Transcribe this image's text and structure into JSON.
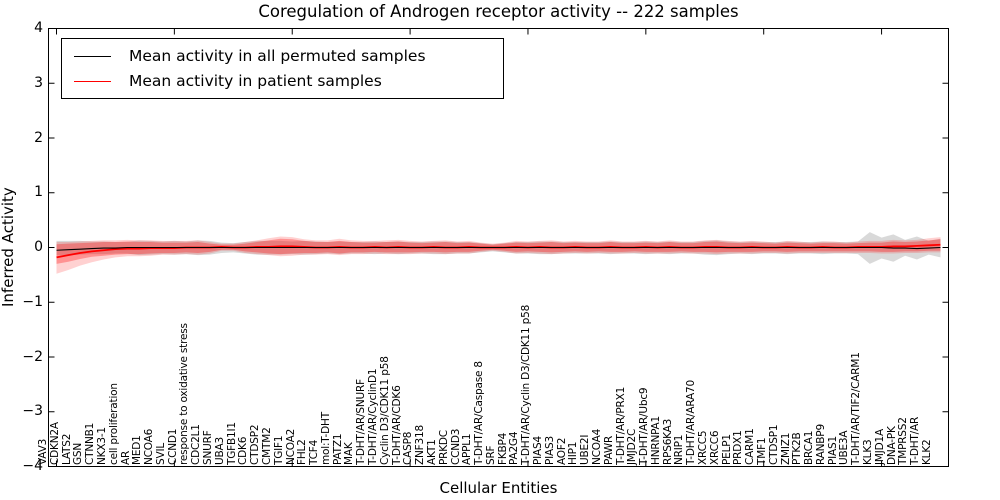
{
  "figure": {
    "title": "Coregulation of Androgen receptor activity -- 222 samples",
    "xlabel": "Cellular Entities",
    "ylabel": "Inferred Activity"
  },
  "legend": {
    "items": [
      {
        "label": "Mean activity in all permuted samples",
        "color": "#000000"
      },
      {
        "label": "Mean activity in patient samples",
        "color": "#ff0000"
      }
    ]
  },
  "colors": {
    "frame": "#000000",
    "permuted_line": "#000000",
    "patient_line": "#ff0000",
    "patient_band": "#ff0000",
    "permuted_band": "#808080",
    "background": "#ffffff"
  },
  "chart_data": {
    "type": "line",
    "title": "Coregulation of Androgen receptor activity -- 222 samples",
    "xlabel": "Cellular Entities",
    "ylabel": "Inferred Activity",
    "ylim": [
      -4,
      4
    ],
    "yticks": [
      {
        "v": 4,
        "label": "4"
      },
      {
        "v": 3,
        "label": "3"
      },
      {
        "v": 2,
        "label": "2"
      },
      {
        "v": 1,
        "label": "1"
      },
      {
        "v": 0,
        "label": "0"
      },
      {
        "v": -1,
        "label": "−1"
      },
      {
        "v": -2,
        "label": "−2"
      },
      {
        "v": -3,
        "label": "−3"
      },
      {
        "v": -4,
        "label": "−4"
      }
    ],
    "grid": false,
    "legend_position": "upper left",
    "xtick_every": 10,
    "categories": [
      "VAV3",
      "CDKN2A",
      "LATS2",
      "GSN",
      "CTNNB1",
      "NKX3-1",
      "cell proliferation",
      "AR",
      "MED1",
      "NCOA6",
      "SVIL",
      "CCND1",
      "response to oxidative stress",
      "CDC2L1",
      "SNURF",
      "UBA3",
      "TGFB1I1",
      "CDK6",
      "CTDSP2",
      "CMTM2",
      "TGIF1",
      "NCOA2",
      "FHL2",
      "TCF4",
      "mol:T-DHT",
      "PATZ1",
      "MAK",
      "T-DHT/AR/SNURF",
      "T-DHT/AR/CyclinD1",
      "Cyclin D3/CDK11 p58",
      "T-DHT/AR/CDK6",
      "CASP8",
      "ZNF318",
      "AKT1",
      "PRKDC",
      "CCND3",
      "APPL1",
      "T-DHT/AR/Caspase 8",
      "SRF",
      "FKBP4",
      "PA2G4",
      "T-DHT/AR/Cyclin D3/CDK11 p58",
      "PIAS4",
      "PIAS3",
      "AOF2",
      "HIP1",
      "UBE2I",
      "NCOA4",
      "PAWR",
      "T-DHT/AR/PRX1",
      "JMJD2C",
      "T-DHT/AR/Ubc9",
      "HNRNPA1",
      "RPS6KA3",
      "NRIP1",
      "T-DHT/AR/ARA70",
      "XRCC5",
      "XRCC6",
      "PELP1",
      "PRDX1",
      "CARM1",
      "TMF1",
      "CTDSP1",
      "ZMIZ1",
      "PTK2B",
      "BRCA1",
      "RANBP9",
      "PIAS1",
      "UBE3A",
      "T-DHT/AR/TIF2/CARM1",
      "KLK3",
      "JMJD1A",
      "DNA-PK",
      "TMPRSS2",
      "T-DHT/AR",
      "KLK2"
    ],
    "series": [
      {
        "name": "Mean activity in all permuted samples",
        "color": "#000000",
        "values": [
          -0.05,
          -0.04,
          -0.03,
          -0.02,
          -0.01,
          -0.01,
          0,
          0,
          0,
          0,
          0,
          0,
          0,
          0,
          0,
          0,
          0,
          0,
          0,
          0,
          0,
          0,
          0,
          0,
          0,
          0,
          0,
          0,
          0,
          0,
          0,
          0,
          0,
          0,
          0,
          0,
          0,
          0,
          0,
          0,
          0,
          0,
          0,
          0,
          0,
          0,
          0,
          0,
          0,
          0,
          0,
          0,
          0,
          0,
          0,
          0,
          0,
          0,
          0,
          0,
          0,
          0,
          0,
          0,
          0,
          0,
          0,
          0,
          0,
          0,
          0,
          -0.01,
          -0.01,
          -0.02,
          -0.01,
          0
        ],
        "band_top": [
          0.12,
          0.12,
          0.12,
          0.11,
          0.11,
          0.1,
          0.1,
          0.13,
          0.12,
          0.11,
          0.12,
          0.11,
          0.13,
          0.12,
          0.09,
          0.08,
          0.1,
          0.12,
          0.12,
          0.12,
          0.11,
          0.12,
          0.11,
          0.1,
          0.11,
          0.1,
          0.1,
          0.11,
          0.1,
          0.11,
          0.1,
          0.1,
          0.11,
          0.11,
          0.1,
          0.1,
          0.08,
          0.06,
          0.08,
          0.1,
          0.1,
          0.11,
          0.11,
          0.1,
          0.1,
          0.1,
          0.1,
          0.11,
          0.1,
          0.1,
          0.11,
          0.1,
          0.11,
          0.1,
          0.1,
          0.12,
          0.13,
          0.11,
          0.1,
          0.11,
          0.1,
          0.1,
          0.11,
          0.1,
          0.1,
          0.11,
          0.1,
          0.1,
          0.11,
          0.28,
          0.18,
          0.24,
          0.14,
          0.2,
          0.12,
          0.16
        ],
        "band_bot": [
          -0.14,
          -0.14,
          -0.13,
          -0.12,
          -0.12,
          -0.11,
          -0.11,
          -0.14,
          -0.13,
          -0.12,
          -0.13,
          -0.12,
          -0.14,
          -0.13,
          -0.1,
          -0.09,
          -0.11,
          -0.13,
          -0.13,
          -0.13,
          -0.12,
          -0.13,
          -0.12,
          -0.11,
          -0.12,
          -0.11,
          -0.11,
          -0.12,
          -0.11,
          -0.12,
          -0.11,
          -0.11,
          -0.12,
          -0.12,
          -0.11,
          -0.11,
          -0.09,
          -0.07,
          -0.09,
          -0.11,
          -0.11,
          -0.12,
          -0.12,
          -0.11,
          -0.11,
          -0.11,
          -0.11,
          -0.12,
          -0.11,
          -0.11,
          -0.12,
          -0.11,
          -0.12,
          -0.11,
          -0.11,
          -0.13,
          -0.14,
          -0.12,
          -0.11,
          -0.12,
          -0.11,
          -0.11,
          -0.12,
          -0.11,
          -0.11,
          -0.12,
          -0.11,
          -0.11,
          -0.12,
          -0.3,
          -0.2,
          -0.26,
          -0.15,
          -0.22,
          -0.13,
          -0.18
        ]
      },
      {
        "name": "Mean activity in patient samples",
        "color": "#ff0000",
        "values": [
          -0.18,
          -0.14,
          -0.1,
          -0.07,
          -0.05,
          -0.03,
          -0.02,
          -0.02,
          -0.01,
          -0.01,
          -0.01,
          0,
          0,
          0,
          0.01,
          0,
          0,
          0.01,
          0.01,
          0.02,
          0.02,
          0.01,
          0,
          0,
          0.01,
          0,
          0,
          0.01,
          0,
          0.01,
          0,
          0,
          0.01,
          0,
          0,
          0.01,
          0,
          0,
          0,
          0.01,
          0,
          0.01,
          0,
          0,
          0.01,
          0,
          0,
          0.01,
          0,
          0,
          0.01,
          0,
          0.01,
          0,
          0,
          0.01,
          0.01,
          0,
          0,
          0.01,
          0,
          0,
          0.01,
          0,
          0,
          0.01,
          0,
          0,
          0.01,
          0.01,
          0.01,
          0.02,
          0.02,
          0.03,
          0.04,
          0.05
        ],
        "band_top": [
          0.06,
          0.07,
          0.08,
          0.09,
          0.1,
          0.1,
          0.11,
          0.1,
          0.1,
          0.09,
          0.09,
          0.09,
          0.1,
          0.07,
          0.05,
          0.05,
          0.07,
          0.1,
          0.13,
          0.16,
          0.15,
          0.12,
          0.1,
          0.1,
          0.12,
          0.1,
          0.09,
          0.09,
          0.1,
          0.11,
          0.09,
          0.08,
          0.09,
          0.1,
          0.08,
          0.09,
          0.07,
          0.05,
          0.07,
          0.09,
          0.08,
          0.09,
          0.1,
          0.08,
          0.09,
          0.08,
          0.08,
          0.1,
          0.08,
          0.08,
          0.09,
          0.08,
          0.1,
          0.08,
          0.08,
          0.1,
          0.11,
          0.09,
          0.08,
          0.09,
          0.08,
          0.07,
          0.09,
          0.08,
          0.07,
          0.08,
          0.08,
          0.07,
          0.08,
          0.09,
          0.09,
          0.11,
          0.1,
          0.11,
          0.13,
          0.15
        ],
        "band_bot": [
          -0.3,
          -0.26,
          -0.21,
          -0.17,
          -0.15,
          -0.13,
          -0.12,
          -0.12,
          -0.11,
          -0.1,
          -0.1,
          -0.09,
          -0.1,
          -0.08,
          -0.04,
          -0.04,
          -0.07,
          -0.09,
          -0.11,
          -0.12,
          -0.11,
          -0.1,
          -0.1,
          -0.09,
          -0.11,
          -0.09,
          -0.09,
          -0.08,
          -0.09,
          -0.09,
          -0.09,
          -0.08,
          -0.08,
          -0.09,
          -0.08,
          -0.08,
          -0.06,
          -0.04,
          -0.06,
          -0.08,
          -0.07,
          -0.08,
          -0.09,
          -0.08,
          -0.07,
          -0.08,
          -0.07,
          -0.08,
          -0.08,
          -0.07,
          -0.08,
          -0.08,
          -0.08,
          -0.07,
          -0.08,
          -0.08,
          -0.09,
          -0.08,
          -0.08,
          -0.08,
          -0.07,
          -0.07,
          -0.08,
          -0.07,
          -0.07,
          -0.07,
          -0.07,
          -0.07,
          -0.07,
          -0.07,
          -0.08,
          -0.08,
          -0.07,
          -0.07,
          -0.06,
          -0.06
        ],
        "band_outer_top": [
          0.1,
          0.1,
          0.11,
          0.12,
          0.13,
          0.13,
          0.14,
          0.13,
          0.13,
          0.12,
          0.12,
          0.12,
          0.13,
          0.1,
          0.07,
          0.07,
          0.1,
          0.13,
          0.17,
          0.2,
          0.19,
          0.15,
          0.13,
          0.13,
          0.16,
          0.13,
          0.12,
          0.12,
          0.13,
          0.14,
          0.12,
          0.11,
          0.12,
          0.13,
          0.11,
          0.12,
          0.09,
          0.07,
          0.09,
          0.12,
          0.11,
          0.12,
          0.13,
          0.11,
          0.12,
          0.11,
          0.11,
          0.13,
          0.11,
          0.11,
          0.12,
          0.11,
          0.13,
          0.11,
          0.11,
          0.13,
          0.14,
          0.12,
          0.11,
          0.12,
          0.11,
          0.09,
          0.12,
          0.11,
          0.09,
          0.11,
          0.11,
          0.09,
          0.11,
          0.12,
          0.12,
          0.14,
          0.13,
          0.14,
          0.17,
          0.19
        ],
        "band_outer_bot": [
          -0.48,
          -0.41,
          -0.33,
          -0.27,
          -0.22,
          -0.18,
          -0.16,
          -0.16,
          -0.15,
          -0.13,
          -0.13,
          -0.12,
          -0.13,
          -0.11,
          -0.06,
          -0.06,
          -0.1,
          -0.12,
          -0.14,
          -0.16,
          -0.15,
          -0.13,
          -0.13,
          -0.12,
          -0.14,
          -0.12,
          -0.12,
          -0.11,
          -0.12,
          -0.12,
          -0.12,
          -0.11,
          -0.11,
          -0.12,
          -0.11,
          -0.11,
          -0.08,
          -0.06,
          -0.08,
          -0.11,
          -0.1,
          -0.11,
          -0.12,
          -0.11,
          -0.1,
          -0.11,
          -0.1,
          -0.11,
          -0.11,
          -0.1,
          -0.11,
          -0.11,
          -0.11,
          -0.1,
          -0.11,
          -0.11,
          -0.12,
          -0.11,
          -0.11,
          -0.11,
          -0.1,
          -0.1,
          -0.11,
          -0.1,
          -0.1,
          -0.1,
          -0.1,
          -0.1,
          -0.1,
          -0.1,
          -0.11,
          -0.11,
          -0.1,
          -0.1,
          -0.09,
          -0.09
        ]
      }
    ]
  }
}
